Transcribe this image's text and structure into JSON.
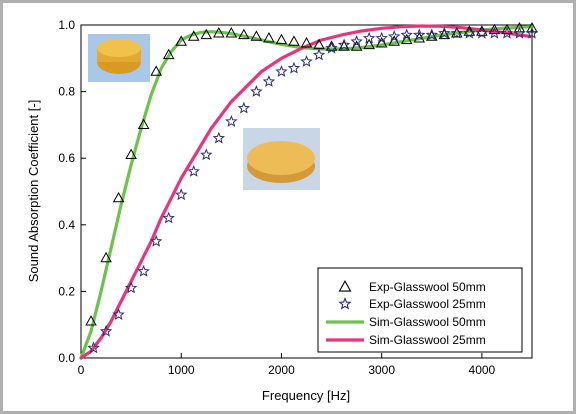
{
  "chart_data": {
    "type": "line",
    "title": "",
    "xlabel": "Frequency [Hz]",
    "ylabel": "Sound Absorption Coefficient [-]",
    "xlim": [
      0,
      4500
    ],
    "ylim": [
      0,
      1.0
    ],
    "x_ticks": [
      0,
      1000,
      2000,
      3000,
      4000
    ],
    "y_ticks": [
      0.0,
      0.2,
      0.4,
      0.6,
      0.8,
      1.0
    ],
    "x_tick_labels": [
      "0",
      "1000",
      "2000",
      "3000",
      "4000"
    ],
    "y_tick_labels": [
      "0.0",
      "0.2",
      "0.4",
      "0.6",
      "0.8",
      "1.0"
    ],
    "grid": false,
    "legend_position": "bottom-right",
    "series": [
      {
        "name": "Exp-Glasswool 50mm",
        "kind": "scatter",
        "marker": "triangle-open",
        "color": "#000000",
        "x": [
          100,
          250,
          375,
          500,
          625,
          750,
          875,
          1000,
          1125,
          1250,
          1375,
          1500,
          1625,
          1750,
          1875,
          2000,
          2125,
          2250,
          2375,
          2500,
          2625,
          2750,
          2875,
          3000,
          3125,
          3250,
          3375,
          3500,
          3625,
          3750,
          3875,
          4000,
          4125,
          4250,
          4375,
          4500
        ],
        "y": [
          0.11,
          0.3,
          0.48,
          0.61,
          0.7,
          0.86,
          0.91,
          0.95,
          0.965,
          0.97,
          0.975,
          0.975,
          0.97,
          0.965,
          0.96,
          0.955,
          0.95,
          0.945,
          0.94,
          0.935,
          0.935,
          0.935,
          0.94,
          0.945,
          0.95,
          0.955,
          0.96,
          0.965,
          0.97,
          0.975,
          0.98,
          0.98,
          0.985,
          0.985,
          0.99,
          0.99
        ]
      },
      {
        "name": "Exp-Glasswool 25mm",
        "kind": "scatter",
        "marker": "star-open",
        "color": "#2b2d7a",
        "x": [
          125,
          250,
          375,
          500,
          625,
          750,
          875,
          1000,
          1125,
          1250,
          1375,
          1500,
          1625,
          1750,
          1875,
          2000,
          2125,
          2250,
          2375,
          2500,
          2625,
          2750,
          2875,
          3000,
          3125,
          3250,
          3375,
          3500,
          3625,
          3750,
          3875,
          4000,
          4125,
          4250,
          4375,
          4500
        ],
        "y": [
          0.03,
          0.08,
          0.13,
          0.21,
          0.26,
          0.35,
          0.42,
          0.49,
          0.56,
          0.61,
          0.66,
          0.71,
          0.75,
          0.8,
          0.83,
          0.86,
          0.87,
          0.89,
          0.91,
          0.93,
          0.94,
          0.95,
          0.96,
          0.96,
          0.965,
          0.97,
          0.97,
          0.97,
          0.975,
          0.975,
          0.975,
          0.975,
          0.975,
          0.975,
          0.975,
          0.975
        ]
      },
      {
        "name": "Sim-Glasswool 50mm",
        "kind": "line",
        "color": "#6cc24a",
        "x": [
          0,
          100,
          200,
          300,
          400,
          500,
          600,
          700,
          800,
          900,
          1000,
          1100,
          1200,
          1300,
          1400,
          1500,
          1600,
          1700,
          1800,
          1900,
          2000,
          2200,
          2400,
          2600,
          2800,
          3000,
          3200,
          3400,
          3600,
          3800,
          4000,
          4200,
          4500
        ],
        "y": [
          0.0,
          0.08,
          0.2,
          0.33,
          0.46,
          0.58,
          0.69,
          0.79,
          0.87,
          0.92,
          0.955,
          0.97,
          0.978,
          0.98,
          0.978,
          0.974,
          0.968,
          0.962,
          0.955,
          0.948,
          0.942,
          0.932,
          0.928,
          0.928,
          0.932,
          0.94,
          0.95,
          0.96,
          0.97,
          0.978,
          0.985,
          0.99,
          0.995
        ]
      },
      {
        "name": "Sim-Glasswool 25mm",
        "kind": "line",
        "color": "#e8347c",
        "x": [
          0,
          100,
          200,
          300,
          400,
          500,
          600,
          700,
          800,
          900,
          1000,
          1100,
          1200,
          1300,
          1400,
          1500,
          1600,
          1700,
          1800,
          1900,
          2000,
          2200,
          2400,
          2600,
          2800,
          3000,
          3200,
          3400,
          3600,
          3800,
          4000,
          4200,
          4500
        ],
        "y": [
          0.0,
          0.02,
          0.06,
          0.11,
          0.17,
          0.23,
          0.29,
          0.35,
          0.42,
          0.48,
          0.54,
          0.59,
          0.64,
          0.69,
          0.73,
          0.77,
          0.8,
          0.83,
          0.86,
          0.88,
          0.9,
          0.93,
          0.955,
          0.97,
          0.982,
          0.99,
          0.995,
          0.997,
          0.996,
          0.992,
          0.985,
          0.978,
          0.965
        ]
      }
    ]
  },
  "images": [
    {
      "name": "photo-glasswool-50mm",
      "color": "#e8b23a",
      "background": "#a9c7e8"
    },
    {
      "name": "photo-glasswool-25mm",
      "color": "#e9b552",
      "background": "#c9d6e6"
    }
  ]
}
